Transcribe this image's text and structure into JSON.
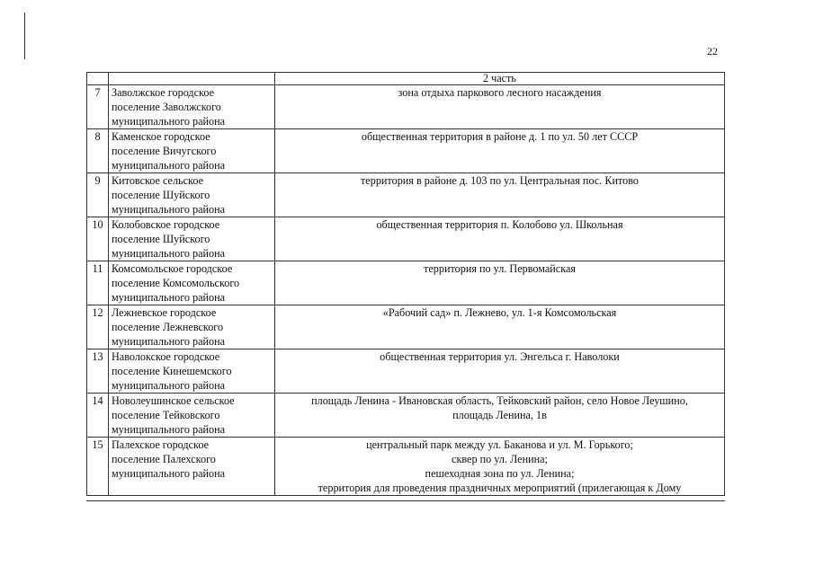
{
  "page_number": "22",
  "table": {
    "header": {
      "col1": "",
      "col2": "",
      "col3": "2 часть"
    },
    "rows": [
      {
        "num": "7",
        "name": [
          "Заволжское городское",
          "поселение Заволжского",
          "муниципального района"
        ],
        "location": [
          "зона отдыха паркового лесного насаждения"
        ]
      },
      {
        "num": "8",
        "name": [
          "Каменское городское",
          "поселение Вичугского",
          "муниципального района"
        ],
        "location": [
          "общественная территория в районе д. 1 по ул. 50 лет СССР"
        ]
      },
      {
        "num": "9",
        "name": [
          "Китовское сельское",
          "поселение Шуйского",
          "муниципального района"
        ],
        "location": [
          "территория в районе д. 103 по ул. Центральная пос. Китово"
        ]
      },
      {
        "num": "10",
        "name": [
          "Колобовское городское",
          "поселение Шуйского",
          "муниципального района"
        ],
        "location": [
          "общественная территория п. Колобово ул. Школьная"
        ]
      },
      {
        "num": "11",
        "name": [
          "Комсомольское городское",
          "поселение Комсомольского",
          "муниципального района"
        ],
        "location": [
          "территория по ул. Первомайская"
        ]
      },
      {
        "num": "12",
        "name": [
          "Лежневское городское",
          "поселение Лежневского",
          "муниципального района"
        ],
        "location": [
          "«Рабочий сад» п. Лежнево, ул. 1-я Комсомольская"
        ]
      },
      {
        "num": "13",
        "name": [
          "Наволокское городское",
          "поселение Кинешемского",
          "муниципального района"
        ],
        "location": [
          "общественная территория ул. Энгельса г. Наволоки"
        ]
      },
      {
        "num": "14",
        "name": [
          "Новолеушинское сельское",
          "поселение Тейковского",
          "муниципального района"
        ],
        "location": [
          "площадь Ленина - Ивановская область, Тейковский район, село Новое Леушино,",
          "площадь Ленина, 1в"
        ]
      },
      {
        "num": "15",
        "name": [
          "Палехское городское",
          "поселение Палехского",
          "муниципального района"
        ],
        "location": [
          "центральный парк между ул. Баканова и ул. М. Горького;",
          "сквер по ул. Ленина;",
          "пешеходная зона по ул. Ленина;",
          "территория для проведения праздничных мероприятий (прилегающая к Дому"
        ]
      }
    ]
  }
}
